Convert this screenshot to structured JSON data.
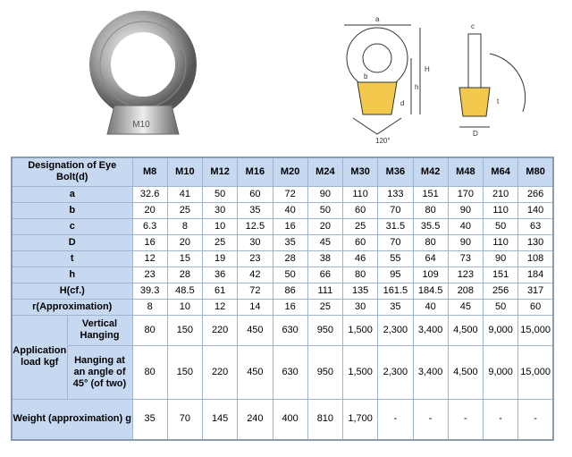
{
  "image": {
    "label": "M10"
  },
  "drawing": {
    "labels": [
      "a",
      "b",
      "H",
      "h",
      "d",
      "120°",
      "c",
      "D",
      "t"
    ]
  },
  "table": {
    "header": {
      "label": "Designation of Eye Bolt(d)",
      "sizes": [
        "M8",
        "M10",
        "M12",
        "M16",
        "M20",
        "M24",
        "M30",
        "M36",
        "M42",
        "M48",
        "M64",
        "M80"
      ]
    },
    "rows": [
      {
        "label": "a",
        "values": [
          "32.6",
          "41",
          "50",
          "60",
          "72",
          "90",
          "110",
          "133",
          "151",
          "170",
          "210",
          "266"
        ]
      },
      {
        "label": "b",
        "values": [
          "20",
          "25",
          "30",
          "35",
          "40",
          "50",
          "60",
          "70",
          "80",
          "90",
          "110",
          "140"
        ]
      },
      {
        "label": "c",
        "values": [
          "6.3",
          "8",
          "10",
          "12.5",
          "16",
          "20",
          "25",
          "31.5",
          "35.5",
          "40",
          "50",
          "63"
        ]
      },
      {
        "label": "D",
        "values": [
          "16",
          "20",
          "25",
          "30",
          "35",
          "45",
          "60",
          "70",
          "80",
          "90",
          "110",
          "130"
        ]
      },
      {
        "label": "t",
        "values": [
          "12",
          "15",
          "19",
          "23",
          "28",
          "38",
          "46",
          "55",
          "64",
          "73",
          "90",
          "108"
        ]
      },
      {
        "label": "h",
        "values": [
          "23",
          "28",
          "36",
          "42",
          "50",
          "66",
          "80",
          "95",
          "109",
          "123",
          "151",
          "184"
        ]
      },
      {
        "label": "H(cf.)",
        "values": [
          "39.3",
          "48.5",
          "61",
          "72",
          "86",
          "111",
          "135",
          "161.5",
          "184.5",
          "208",
          "256",
          "317"
        ]
      },
      {
        "label": "r(Approximation)",
        "values": [
          "8",
          "10",
          "12",
          "14",
          "16",
          "25",
          "30",
          "35",
          "40",
          "45",
          "50",
          "60"
        ]
      }
    ],
    "application": {
      "label": "Application load kgf",
      "rows": [
        {
          "label": "Vertical Hanging",
          "values": [
            "80",
            "150",
            "220",
            "450",
            "630",
            "950",
            "1,500",
            "2,300",
            "3,400",
            "4,500",
            "9,000",
            "15,000"
          ]
        },
        {
          "label": "Hanging at an angle of 45° (of two)",
          "values": [
            "80",
            "150",
            "220",
            "450",
            "630",
            "950",
            "1,500",
            "2,300",
            "3,400",
            "4,500",
            "9,000",
            "15,000"
          ]
        }
      ]
    },
    "weight": {
      "label": "Weight (approximation) g",
      "values": [
        "35",
        "70",
        "145",
        "240",
        "400",
        "810",
        "1,700",
        "-",
        "-",
        "-",
        "-",
        "-"
      ]
    }
  }
}
